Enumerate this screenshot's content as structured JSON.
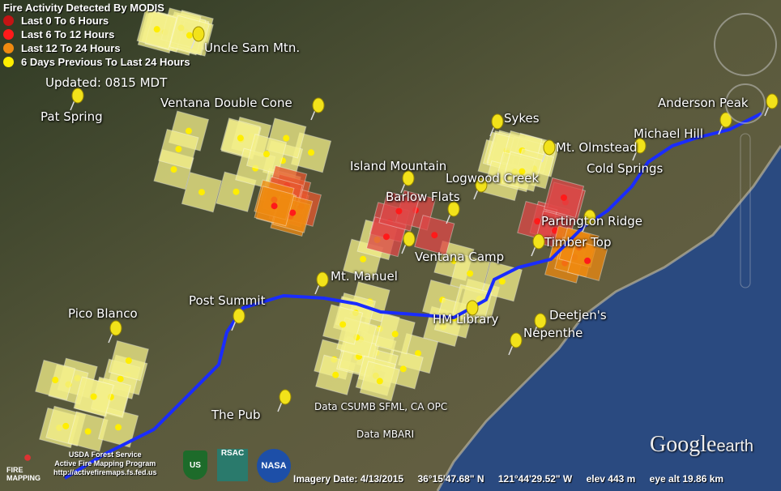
{
  "legend": {
    "title": "Fire Activity Detected By MODIS",
    "items": [
      {
        "label": "Last 0 To 6 Hours",
        "color": "#c41414"
      },
      {
        "label": "Last 6 To 12 Hours",
        "color": "#ff1a1a"
      },
      {
        "label": "Last 12 To 24 Hours",
        "color": "#f08a10"
      },
      {
        "label": "6 Days Previous To Last 24 Hours",
        "color": "#ffee00"
      }
    ],
    "updated": "Updated: 0815 MDT"
  },
  "places": [
    "Uncle Sam Mtn.",
    "Pat Spring",
    "Ventana Double Cone",
    "Sykes",
    "Anderson Peak",
    "Michael Hill",
    "Mt. Olmstead",
    "Cold Springs",
    "Island Mountain",
    "Logwood Creek",
    "Barlow Flats",
    "Partington Ridge",
    "Timber Top",
    "Ventana Camp",
    "Mt. Manuel",
    "Post Summit",
    "Pico Blanco",
    "HM Library",
    "Deetjen's",
    "Nepenthe",
    "The Pub",
    "Data CSUMB SFML, CA OPC",
    "Data MBARI"
  ],
  "credits": {
    "line1": "USDA Forest Service",
    "line2": "Active Fire Mapping Program",
    "line3": "http://activefiremaps.fs.fed.us",
    "fire_logo": "FIRE MAPPING",
    "rsac_logo": "RSAC",
    "nasa_logo": "NASA",
    "usfs_logo": "US"
  },
  "status": {
    "imagery_date": "Imagery Date: 4/13/2015",
    "lat": "36°15'47.68\" N",
    "lon": "121°44'29.52\" W",
    "elev": "elev   443 m",
    "eye_alt": "eye alt  19.86 km"
  },
  "brand": {
    "google": "Google",
    "earth": "earth"
  },
  "colors": {
    "trail": "#1a2cff",
    "ocean": "#2a4a80",
    "footprint": "#f4f08a"
  }
}
